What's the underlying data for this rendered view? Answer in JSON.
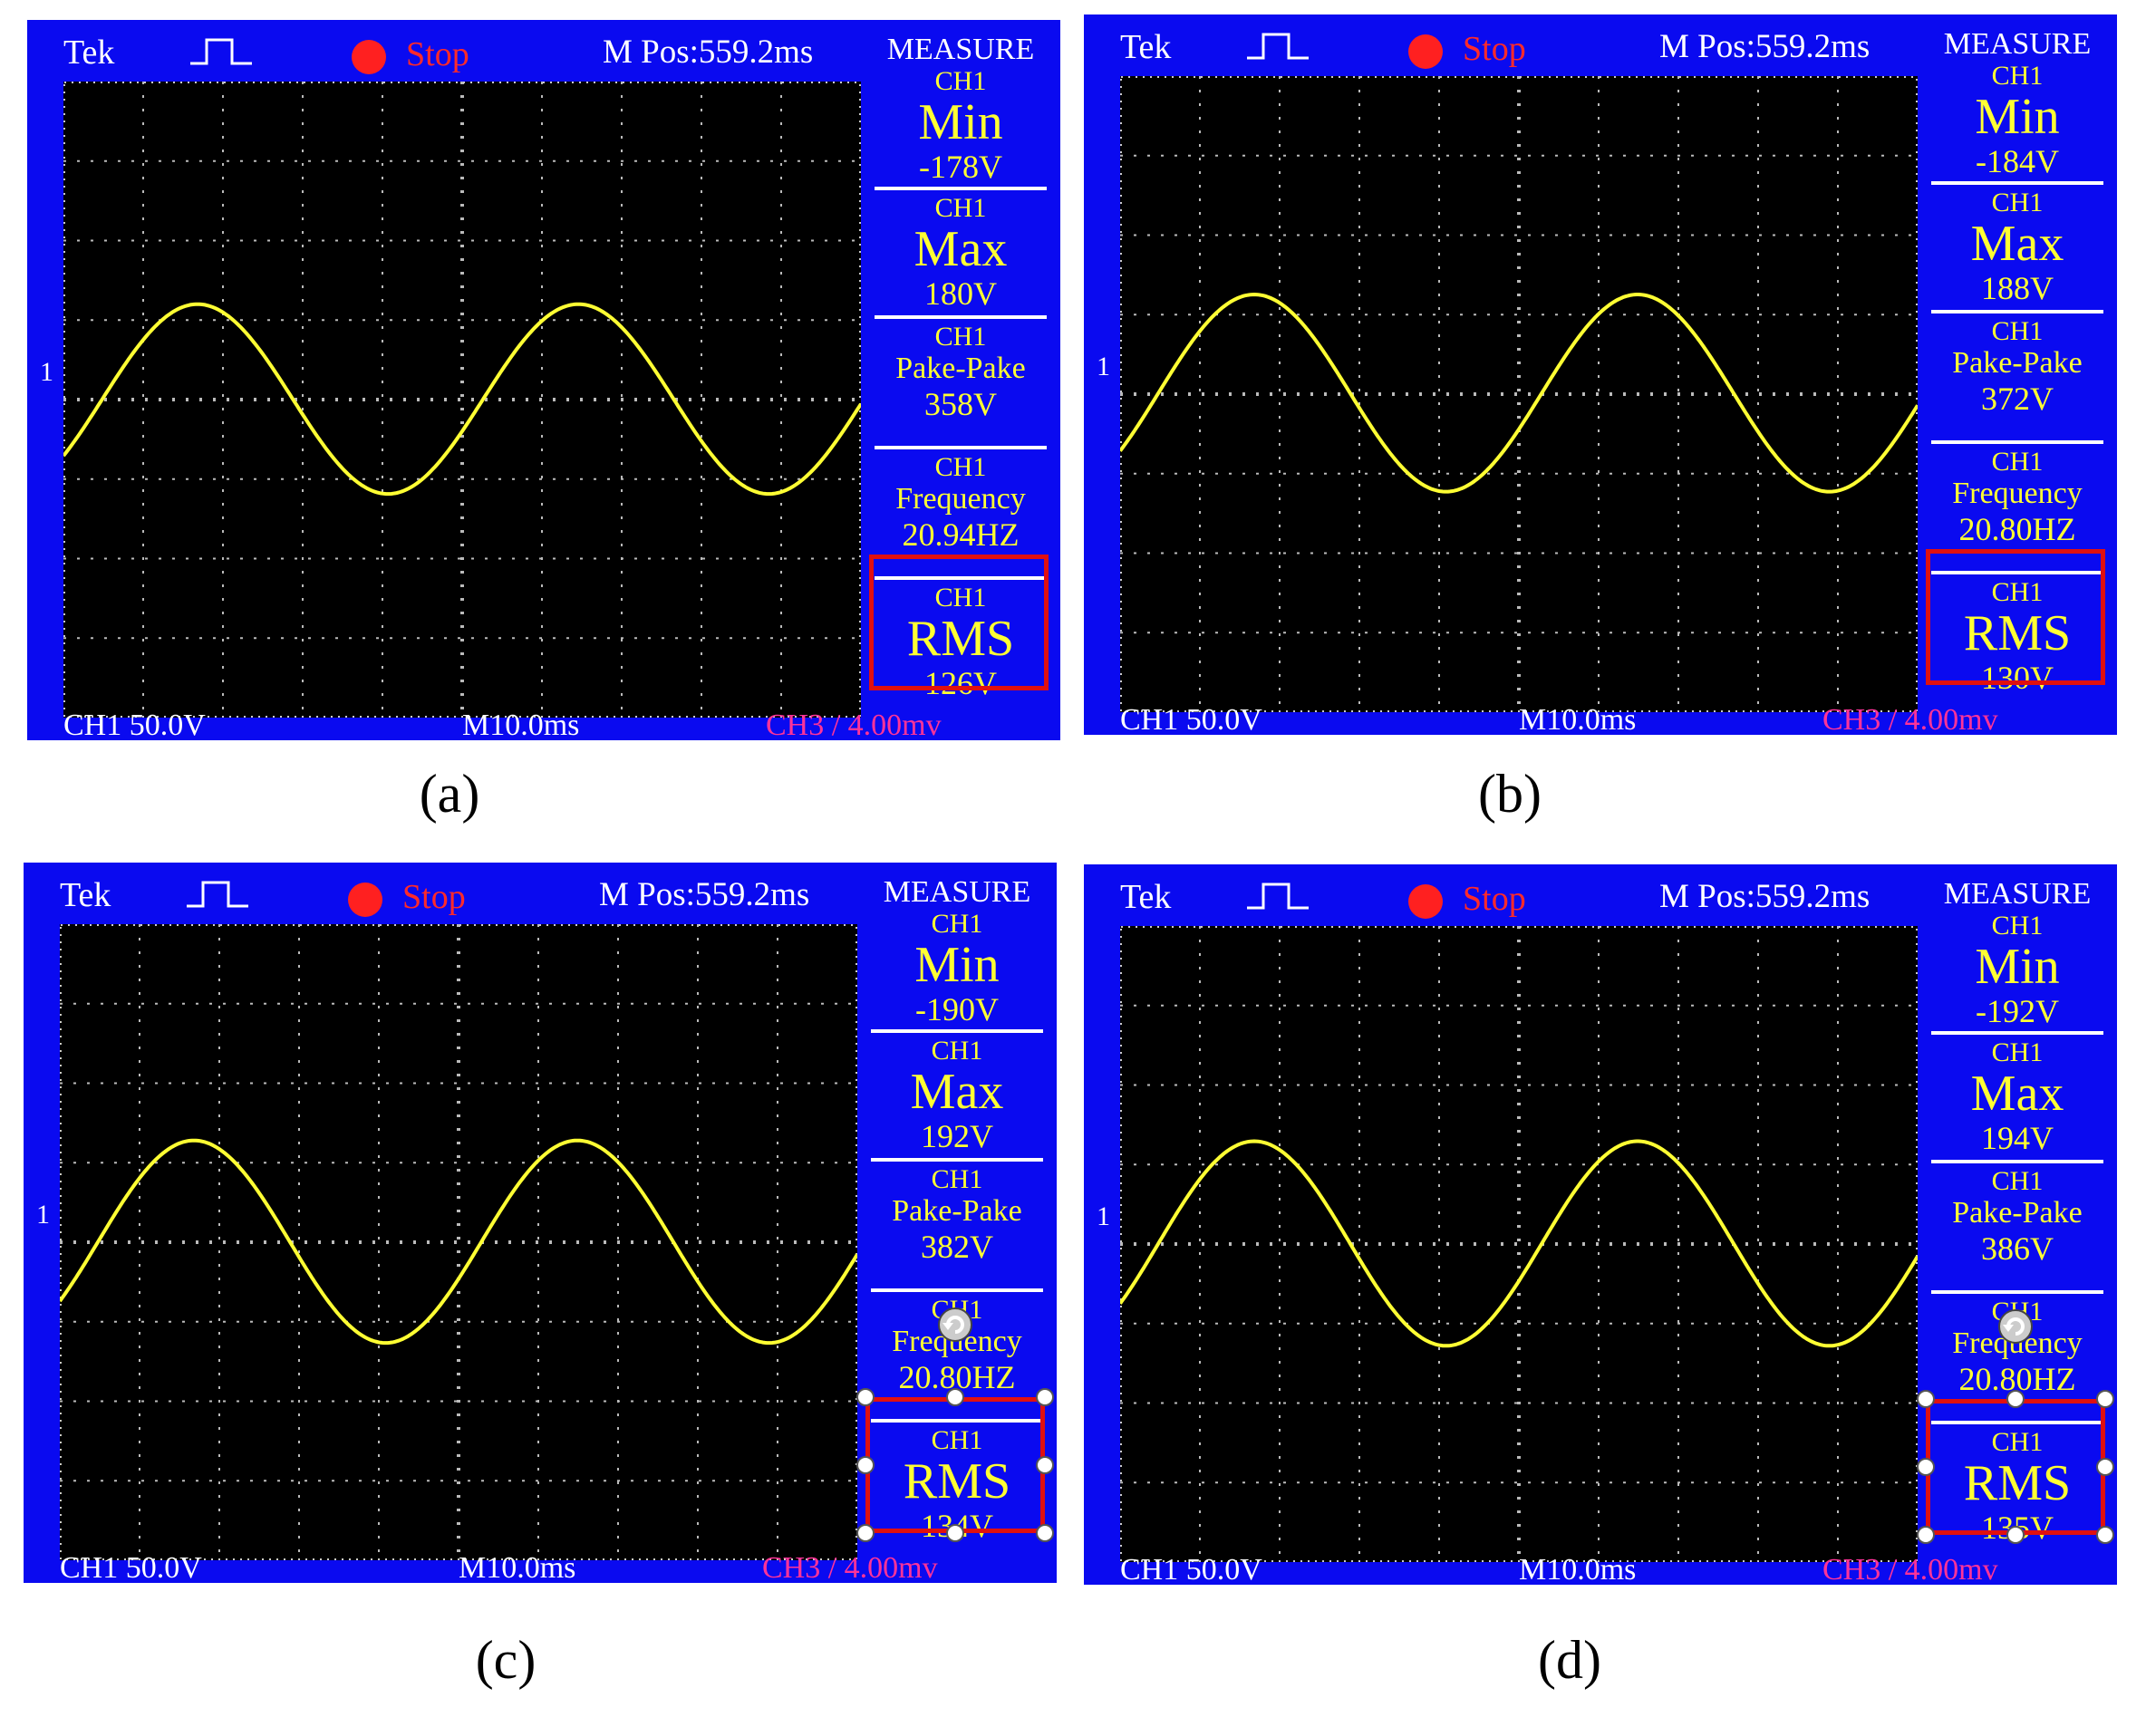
{
  "panels": [
    {
      "id": "a",
      "caption": "(a)",
      "header": {
        "tek": "Tek",
        "status": "Stop",
        "mpos": "M Pos:559.2ms"
      },
      "measure_title": "MEASURE",
      "measurements": [
        {
          "channel": "CH1",
          "label": "Min",
          "value": "-178V"
        },
        {
          "channel": "CH1",
          "label": "Max",
          "value": "180V"
        },
        {
          "channel": "CH1",
          "label": "Pake-Pake",
          "value": "358V"
        },
        {
          "channel": "CH1",
          "label": "Frequency",
          "value": "20.94HZ"
        },
        {
          "channel": "CH1",
          "label": "RMS",
          "value": "126V"
        }
      ],
      "footer": {
        "ch1": "CH1 50.0V",
        "timebase": "M10.0ms",
        "ch3": "CH3 / 4.00mv"
      },
      "channel_marker": "1",
      "selected": false
    },
    {
      "id": "b",
      "caption": "(b)",
      "header": {
        "tek": "Tek",
        "status": "Stop",
        "mpos": "M Pos:559.2ms"
      },
      "measure_title": "MEASURE",
      "measurements": [
        {
          "channel": "CH1",
          "label": "Min",
          "value": "-184V"
        },
        {
          "channel": "CH1",
          "label": "Max",
          "value": "188V"
        },
        {
          "channel": "CH1",
          "label": "Pake-Pake",
          "value": "372V"
        },
        {
          "channel": "CH1",
          "label": "Frequency",
          "value": "20.80HZ"
        },
        {
          "channel": "CH1",
          "label": "RMS",
          "value": "130V"
        }
      ],
      "footer": {
        "ch1": "CH1 50.0V",
        "timebase": "M10.0ms",
        "ch3": "CH3 / 4.00mv"
      },
      "channel_marker": "1",
      "selected": false
    },
    {
      "id": "c",
      "caption": "(c)",
      "header": {
        "tek": "Tek",
        "status": "Stop",
        "mpos": "M Pos:559.2ms"
      },
      "measure_title": "MEASURE",
      "measurements": [
        {
          "channel": "CH1",
          "label": "Min",
          "value": "-190V"
        },
        {
          "channel": "CH1",
          "label": "Max",
          "value": "192V"
        },
        {
          "channel": "CH1",
          "label": "Pake-Pake",
          "value": "382V"
        },
        {
          "channel": "CH1",
          "label": "Frequency",
          "value": "20.80HZ"
        },
        {
          "channel": "CH1",
          "label": "RMS",
          "value": "134V"
        }
      ],
      "footer": {
        "ch1": "CH1 50.0V",
        "timebase": "M10.0ms",
        "ch3": "CH3 / 4.00mv"
      },
      "channel_marker": "1",
      "selected": true
    },
    {
      "id": "d",
      "caption": "(d)",
      "header": {
        "tek": "Tek",
        "status": "Stop",
        "mpos": "M Pos:559.2ms"
      },
      "measure_title": "MEASURE",
      "measurements": [
        {
          "channel": "CH1",
          "label": "Min",
          "value": "-192V"
        },
        {
          "channel": "CH1",
          "label": "Max",
          "value": "194V"
        },
        {
          "channel": "CH1",
          "label": "Pake-Pake",
          "value": "386V"
        },
        {
          "channel": "CH1",
          "label": "Frequency",
          "value": "20.80HZ"
        },
        {
          "channel": "CH1",
          "label": "RMS",
          "value": "135V"
        }
      ],
      "footer": {
        "ch1": "CH1 50.0V",
        "timebase": "M10.0ms",
        "ch3": "CH3 / 4.00mv"
      },
      "channel_marker": "1",
      "selected": true
    }
  ],
  "colors": {
    "frame": "#0a0af0",
    "trace": "#ffff33",
    "highlight": "#e01010",
    "stop_dot": "#ff2020",
    "ch3_text": "#ff3399"
  },
  "icons": [
    "pulse-icon",
    "record-dot-icon",
    "rotate-handle-icon",
    "resize-handle-icon",
    "ground-marker-icon"
  ]
}
